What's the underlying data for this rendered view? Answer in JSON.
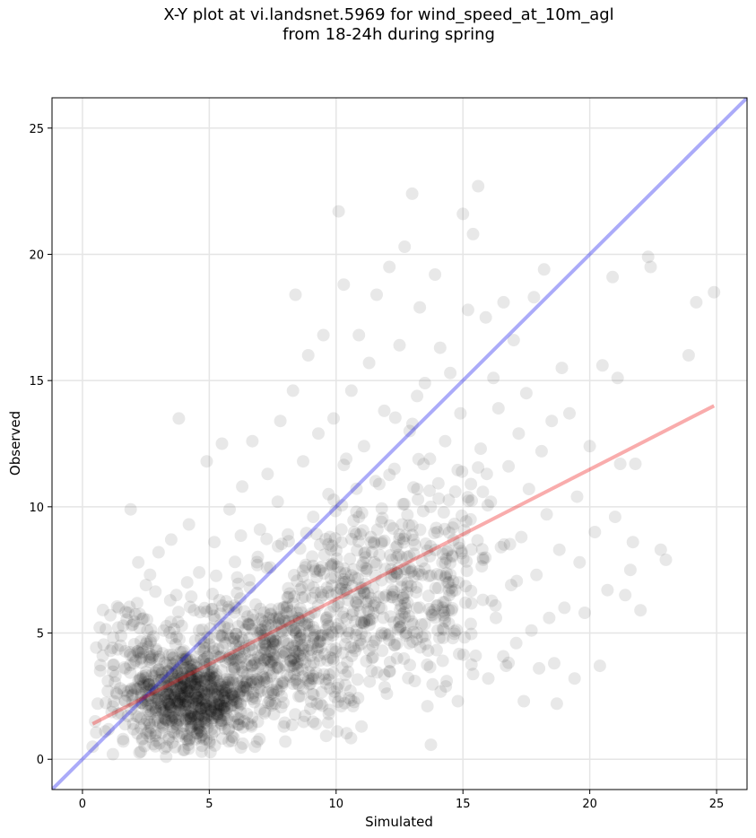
{
  "chart_data": {
    "type": "scatter",
    "title_lines": [
      "X-Y plot at vi.landsnet.5969 for wind_speed_at_10m_agl",
      "from 18-24h during spring"
    ],
    "xlabel": "Simulated",
    "ylabel": "Observed",
    "xlim": [
      -1.2,
      26.2
    ],
    "ylim": [
      -1.2,
      26.2
    ],
    "xticks": [
      0,
      5,
      10,
      15,
      20,
      25
    ],
    "yticks": [
      0,
      5,
      10,
      15,
      20,
      25
    ],
    "grid": true,
    "colors": {
      "points": "#000000",
      "identity_line": "#0000ee",
      "regression_line": "#ee1111"
    },
    "identity_line": {
      "x": [
        -1.2,
        26.2
      ],
      "y": [
        -1.2,
        26.2
      ]
    },
    "regression_line": {
      "x": [
        0.4,
        24.9
      ],
      "y": [
        1.4,
        14.0
      ]
    },
    "series": [
      {
        "points": [
          [
            0.4,
            0.5
          ],
          [
            0.5,
            1.5
          ],
          [
            0.6,
            2.2
          ],
          [
            0.7,
            3.5
          ],
          [
            0.8,
            4.1
          ],
          [
            0.9,
            1.1
          ],
          [
            1.0,
            2.7
          ],
          [
            1.1,
            5.7
          ],
          [
            1.2,
            0.2
          ],
          [
            1.3,
            3.3
          ],
          [
            1.4,
            1.8
          ],
          [
            1.5,
            4.5
          ],
          [
            1.6,
            0.8
          ],
          [
            1.7,
            2.3
          ],
          [
            1.8,
            5.8
          ],
          [
            1.9,
            9.9
          ],
          [
            2.0,
            1.4
          ],
          [
            2.1,
            3.9
          ],
          [
            2.2,
            7.8
          ],
          [
            2.3,
            0.3
          ],
          [
            2.4,
            2.9
          ],
          [
            2.5,
            6.9
          ],
          [
            2.6,
            1.9
          ],
          [
            2.7,
            4.7
          ],
          [
            2.8,
            0.6
          ],
          [
            2.9,
            3.5
          ],
          [
            3.0,
            8.2
          ],
          [
            3.1,
            2.2
          ],
          [
            3.2,
            5.1
          ],
          [
            3.3,
            0.1
          ],
          [
            3.4,
            1.5
          ],
          [
            3.5,
            8.7
          ],
          [
            3.6,
            3.0
          ],
          [
            3.7,
            6.5
          ],
          [
            3.8,
            13.5
          ],
          [
            3.9,
            2.6
          ],
          [
            4.0,
            4.3
          ],
          [
            4.1,
            0.8
          ],
          [
            4.2,
            9.3
          ],
          [
            4.3,
            1.7
          ],
          [
            4.4,
            5.9
          ],
          [
            4.5,
            3.8
          ],
          [
            4.6,
            7.4
          ],
          [
            4.7,
            0.3
          ],
          [
            4.8,
            2.4
          ],
          [
            4.9,
            11.8
          ],
          [
            5.0,
            4.8
          ],
          [
            5.1,
            1.2
          ],
          [
            5.2,
            8.6
          ],
          [
            5.3,
            3.1
          ],
          [
            5.4,
            6.3
          ],
          [
            5.5,
            12.5
          ],
          [
            5.6,
            2.0
          ],
          [
            5.7,
            5.4
          ],
          [
            5.8,
            9.9
          ],
          [
            5.9,
            0.9
          ],
          [
            6.0,
            3.6
          ],
          [
            6.1,
            7.2
          ],
          [
            6.2,
            1.6
          ],
          [
            6.3,
            10.8
          ],
          [
            6.4,
            4.2
          ],
          [
            6.5,
            2.8
          ],
          [
            6.6,
            6.8
          ],
          [
            6.7,
            12.6
          ],
          [
            6.8,
            0.5
          ],
          [
            6.9,
            5.0
          ],
          [
            7.0,
            9.1
          ],
          [
            7.1,
            3.3
          ],
          [
            7.2,
            1.9
          ],
          [
            7.3,
            11.3
          ],
          [
            7.4,
            7.6
          ],
          [
            7.5,
            4.6
          ],
          [
            7.6,
            2.2
          ],
          [
            7.7,
            10.2
          ],
          [
            7.8,
            13.4
          ],
          [
            7.9,
            6.0
          ],
          [
            8.0,
            0.7
          ],
          [
            8.1,
            8.9
          ],
          [
            8.2,
            3.9
          ],
          [
            8.3,
            14.6
          ],
          [
            8.4,
            18.4
          ],
          [
            8.5,
            5.6
          ],
          [
            8.6,
            2.5
          ],
          [
            8.7,
            11.8
          ],
          [
            8.8,
            7.7
          ],
          [
            8.9,
            16.0
          ],
          [
            9.0,
            4.1
          ],
          [
            9.1,
            9.6
          ],
          [
            9.2,
            1.4
          ],
          [
            9.3,
            12.9
          ],
          [
            9.4,
            6.4
          ],
          [
            9.5,
            16.8
          ],
          [
            9.6,
            3.0
          ],
          [
            9.7,
            10.5
          ],
          [
            9.8,
            8.3
          ],
          [
            9.9,
            13.5
          ],
          [
            10.0,
            5.2
          ],
          [
            10.1,
            21.7
          ],
          [
            10.2,
            2.1
          ],
          [
            10.3,
            18.8
          ],
          [
            10.4,
            11.9
          ],
          [
            10.5,
            7.1
          ],
          [
            10.6,
            14.6
          ],
          [
            10.7,
            4.4
          ],
          [
            10.8,
            9.8
          ],
          [
            10.9,
            16.8
          ],
          [
            11.0,
            1.3
          ],
          [
            11.1,
            12.4
          ],
          [
            11.2,
            6.2
          ],
          [
            11.3,
            15.7
          ],
          [
            11.4,
            3.5
          ],
          [
            11.5,
            8.6
          ],
          [
            11.6,
            18.4
          ],
          [
            11.7,
            10.9
          ],
          [
            11.8,
            5.0
          ],
          [
            11.9,
            13.8
          ],
          [
            12.0,
            2.6
          ],
          [
            12.1,
            19.5
          ],
          [
            12.2,
            7.9
          ],
          [
            12.3,
            11.5
          ],
          [
            12.4,
            4.0
          ],
          [
            12.5,
            16.4
          ],
          [
            12.6,
            9.3
          ],
          [
            12.7,
            20.3
          ],
          [
            12.8,
            6.6
          ],
          [
            12.9,
            13.0
          ],
          [
            13.0,
            22.4
          ],
          [
            13.1,
            3.1
          ],
          [
            13.2,
            10.7
          ],
          [
            13.3,
            17.9
          ],
          [
            13.4,
            7.3
          ],
          [
            13.5,
            14.9
          ],
          [
            13.6,
            2.1
          ],
          [
            13.7,
            11.9
          ],
          [
            13.8,
            5.7
          ],
          [
            13.9,
            19.2
          ],
          [
            14.0,
            9.0
          ],
          [
            14.1,
            16.3
          ],
          [
            14.2,
            3.9
          ],
          [
            14.3,
            12.6
          ],
          [
            14.4,
            7.0
          ],
          [
            14.5,
            15.3
          ],
          [
            14.6,
            4.8
          ],
          [
            14.7,
            10.6
          ],
          [
            14.8,
            2.3
          ],
          [
            14.9,
            13.7
          ],
          [
            15.0,
            21.6
          ],
          [
            15.1,
            6.2
          ],
          [
            15.2,
            17.8
          ],
          [
            15.3,
            9.5
          ],
          [
            15.4,
            20.8
          ],
          [
            15.5,
            4.1
          ],
          [
            15.6,
            22.7
          ],
          [
            15.7,
            12.3
          ],
          [
            15.8,
            7.9
          ],
          [
            15.9,
            17.5
          ],
          [
            16.0,
            3.2
          ],
          [
            16.1,
            10.2
          ],
          [
            16.2,
            15.1
          ],
          [
            16.3,
            5.6
          ],
          [
            16.4,
            13.9
          ],
          [
            16.5,
            8.4
          ],
          [
            16.6,
            18.1
          ],
          [
            16.7,
            3.7
          ],
          [
            16.8,
            11.6
          ],
          [
            16.9,
            6.9
          ],
          [
            17.0,
            16.6
          ],
          [
            17.1,
            4.6
          ],
          [
            17.2,
            12.9
          ],
          [
            17.3,
            8.8
          ],
          [
            17.4,
            2.3
          ],
          [
            17.5,
            14.5
          ],
          [
            17.6,
            10.7
          ],
          [
            17.7,
            5.1
          ],
          [
            17.8,
            18.3
          ],
          [
            17.9,
            7.3
          ],
          [
            18.0,
            3.6
          ],
          [
            18.1,
            12.2
          ],
          [
            18.2,
            19.4
          ],
          [
            18.3,
            9.7
          ],
          [
            18.4,
            5.6
          ],
          [
            18.5,
            13.4
          ],
          [
            18.6,
            3.8
          ],
          [
            18.7,
            2.2
          ],
          [
            18.8,
            8.3
          ],
          [
            18.9,
            15.5
          ],
          [
            19.0,
            6.0
          ],
          [
            19.2,
            13.7
          ],
          [
            19.4,
            3.2
          ],
          [
            19.5,
            10.4
          ],
          [
            19.6,
            7.8
          ],
          [
            19.8,
            5.8
          ],
          [
            20.0,
            12.4
          ],
          [
            20.2,
            9.0
          ],
          [
            20.4,
            3.7
          ],
          [
            20.5,
            15.6
          ],
          [
            20.7,
            6.7
          ],
          [
            20.9,
            19.1
          ],
          [
            21.0,
            9.6
          ],
          [
            21.1,
            15.1
          ],
          [
            21.2,
            11.7
          ],
          [
            21.4,
            6.5
          ],
          [
            21.6,
            7.5
          ],
          [
            21.7,
            8.6
          ],
          [
            21.8,
            11.7
          ],
          [
            22.0,
            5.9
          ],
          [
            22.3,
            19.9
          ],
          [
            22.4,
            19.5
          ],
          [
            22.8,
            8.3
          ],
          [
            23.0,
            7.9
          ],
          [
            23.9,
            16.0
          ],
          [
            24.2,
            18.1
          ],
          [
            24.9,
            18.5
          ]
        ],
        "dense_cluster_note_free": true
      }
    ]
  }
}
